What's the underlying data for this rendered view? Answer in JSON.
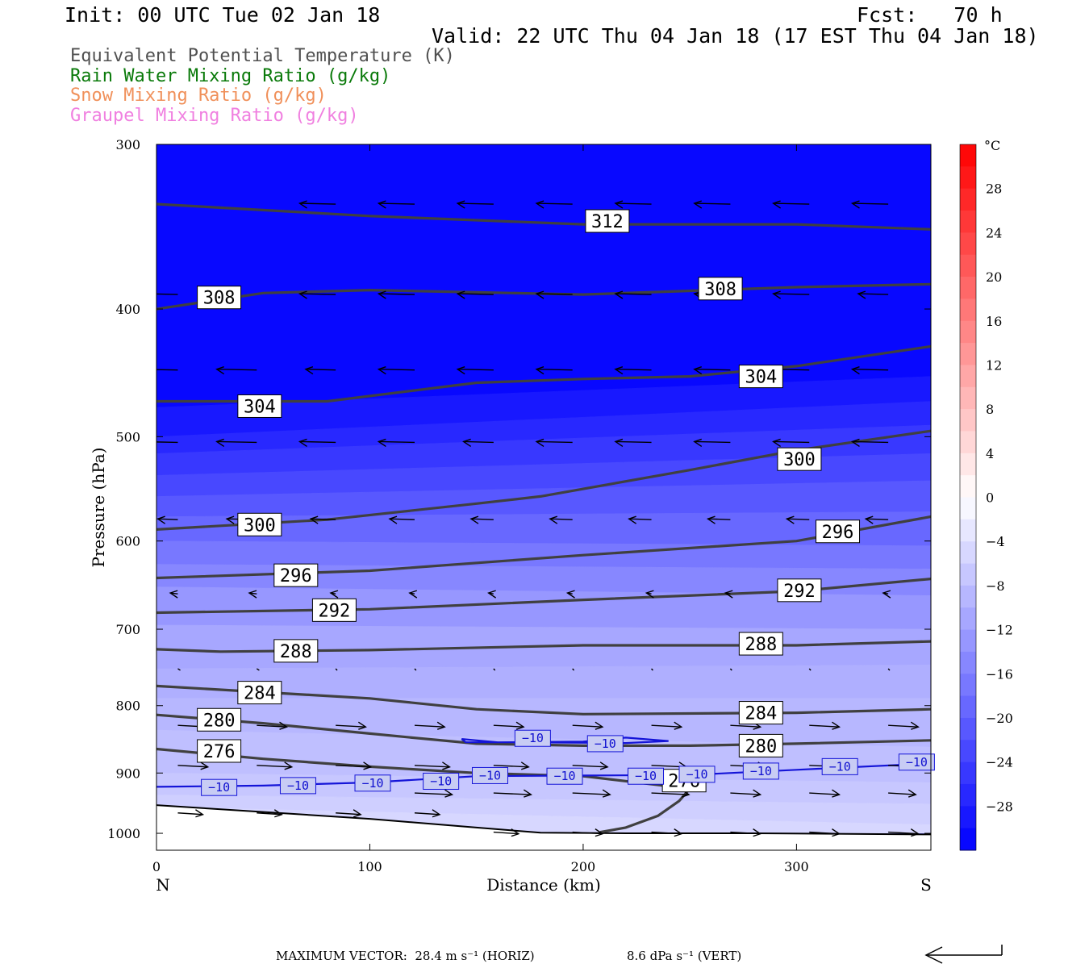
{
  "header": {
    "init": "Init: 00 UTC Tue 02 Jan 18",
    "fcst": "Fcst:   70 h",
    "valid": "Valid: 22 UTC Thu 04 Jan 18 (17 EST Thu 04 Jan 18)"
  },
  "legend": [
    {
      "text": "Equivalent Potential Temperature (K)",
      "color": "#505050"
    },
    {
      "text": "Rain Water Mixing Ratio (g/kg)",
      "color": "#0a7a0a"
    },
    {
      "text": "Snow Mixing Ratio (g/kg)",
      "color": "#f0905a"
    },
    {
      "text": "Graupel Mixing Ratio (g/kg)",
      "color": "#f080e0"
    }
  ],
  "footer": {
    "max_vector": "MAXIMUM VECTOR:  28.4 m s⁻¹ (HORIZ)",
    "vert": "8.6 dPa s⁻¹ (VERT)"
  },
  "chart_data": {
    "type": "cross-section",
    "xlabel": "Distance (km)",
    "ylabel": "Pressure (hPa)",
    "x_range": [
      0,
      363
    ],
    "y_range": [
      1030,
      300
    ],
    "y_log": true,
    "x_ticks": [
      0,
      100,
      200,
      300
    ],
    "y_ticks": [
      300,
      400,
      500,
      600,
      700,
      800,
      900,
      1000
    ],
    "left_end": "N",
    "right_end": "S",
    "colorbar": {
      "unit": "°C",
      "min": -32,
      "max": 32,
      "step": 2,
      "labels": [
        28,
        24,
        20,
        16,
        12,
        8,
        4,
        0,
        -4,
        -8,
        -12,
        -16,
        -20,
        -24,
        -28
      ]
    },
    "temperature_bands": [
      {
        "value": -31,
        "pts": [
          [
            0,
            300
          ],
          [
            363,
            300
          ],
          [
            363,
            450
          ],
          [
            0,
            475
          ]
        ]
      },
      {
        "value": -29,
        "pts": [
          [
            0,
            475
          ],
          [
            363,
            450
          ],
          [
            363,
            470
          ],
          [
            0,
            500
          ]
        ]
      },
      {
        "value": -27,
        "pts": [
          [
            0,
            500
          ],
          [
            363,
            470
          ],
          [
            363,
            490
          ],
          [
            0,
            515
          ]
        ]
      },
      {
        "value": -25,
        "pts": [
          [
            0,
            515
          ],
          [
            363,
            490
          ],
          [
            363,
            515
          ],
          [
            0,
            535
          ]
        ]
      },
      {
        "value": -23,
        "pts": [
          [
            0,
            535
          ],
          [
            363,
            515
          ],
          [
            363,
            540
          ],
          [
            0,
            555
          ]
        ]
      },
      {
        "value": -21,
        "pts": [
          [
            0,
            555
          ],
          [
            363,
            540
          ],
          [
            363,
            570
          ],
          [
            0,
            575
          ]
        ]
      },
      {
        "value": -19,
        "pts": [
          [
            0,
            575
          ],
          [
            363,
            570
          ],
          [
            363,
            605
          ],
          [
            0,
            600
          ]
        ]
      },
      {
        "value": -17,
        "pts": [
          [
            0,
            600
          ],
          [
            363,
            605
          ],
          [
            363,
            630
          ],
          [
            0,
            625
          ]
        ]
      },
      {
        "value": -15,
        "pts": [
          [
            0,
            625
          ],
          [
            363,
            630
          ],
          [
            363,
            660
          ],
          [
            0,
            650
          ]
        ]
      },
      {
        "value": -13,
        "pts": [
          [
            0,
            650
          ],
          [
            363,
            660
          ],
          [
            363,
            700
          ],
          [
            0,
            695
          ]
        ]
      },
      {
        "value": -11,
        "pts": [
          [
            0,
            695
          ],
          [
            363,
            700
          ],
          [
            363,
            745
          ],
          [
            0,
            750
          ]
        ]
      },
      {
        "value": -10,
        "pts": [
          [
            0,
            750
          ],
          [
            363,
            745
          ],
          [
            363,
            790
          ],
          [
            0,
            790
          ]
        ]
      },
      {
        "value": -9,
        "pts": [
          [
            0,
            790
          ],
          [
            363,
            790
          ],
          [
            363,
            860
          ],
          [
            0,
            835
          ]
        ]
      },
      {
        "value": -8,
        "pts": [
          [
            0,
            835
          ],
          [
            363,
            860
          ],
          [
            363,
            915
          ],
          [
            0,
            900
          ]
        ]
      },
      {
        "value": -7,
        "pts": [
          [
            0,
            900
          ],
          [
            363,
            915
          ],
          [
            363,
            950
          ],
          [
            0,
            935
          ]
        ]
      },
      {
        "value": -6,
        "pts": [
          [
            0,
            935
          ],
          [
            363,
            950
          ],
          [
            363,
            985
          ],
          [
            0,
            955
          ]
        ]
      },
      {
        "value": -5,
        "pts": [
          [
            0,
            955
          ],
          [
            180,
            1000
          ],
          [
            363,
            1000
          ],
          [
            363,
            985
          ]
        ]
      }
    ],
    "terrain": [
      [
        0,
        952
      ],
      [
        100,
        975
      ],
      [
        150,
        990
      ],
      [
        180,
        999
      ],
      [
        220,
        1000
      ],
      [
        280,
        1000
      ],
      [
        363,
        1002
      ]
    ],
    "theta_e_contours": [
      {
        "level": 312,
        "pts": [
          [
            0,
            333
          ],
          [
            100,
            340
          ],
          [
            200,
            345
          ],
          [
            300,
            345
          ],
          [
            363,
            348
          ]
        ]
      },
      {
        "level": 308,
        "pts": [
          [
            0,
            400
          ],
          [
            50,
            389
          ],
          [
            100,
            387
          ],
          [
            200,
            390
          ],
          [
            300,
            385
          ],
          [
            363,
            383
          ]
        ]
      },
      {
        "level": 304,
        "pts": [
          [
            0,
            470
          ],
          [
            80,
            470
          ],
          [
            150,
            455
          ],
          [
            200,
            452
          ],
          [
            250,
            450
          ],
          [
            300,
            442
          ],
          [
            363,
            427
          ]
        ]
      },
      {
        "level": 300,
        "pts": [
          [
            0,
            588
          ],
          [
            80,
            578
          ],
          [
            150,
            562
          ],
          [
            180,
            555
          ],
          [
            250,
            530
          ],
          [
            300,
            512
          ],
          [
            363,
            495
          ]
        ]
      },
      {
        "level": 296,
        "pts": [
          [
            0,
            640
          ],
          [
            100,
            632
          ],
          [
            200,
            615
          ],
          [
            300,
            600
          ],
          [
            363,
            575
          ]
        ]
      },
      {
        "level": 292,
        "pts": [
          [
            0,
            680
          ],
          [
            100,
            676
          ],
          [
            200,
            665
          ],
          [
            300,
            655
          ],
          [
            363,
            641
          ]
        ]
      },
      {
        "level": 288,
        "pts": [
          [
            0,
            725
          ],
          [
            30,
            728
          ],
          [
            100,
            726
          ],
          [
            200,
            720
          ],
          [
            300,
            720
          ],
          [
            363,
            715
          ]
        ]
      },
      {
        "level": 284,
        "pts": [
          [
            0,
            773
          ],
          [
            100,
            790
          ],
          [
            150,
            805
          ],
          [
            200,
            812
          ],
          [
            300,
            810
          ],
          [
            363,
            805
          ]
        ]
      },
      {
        "level": 280,
        "pts": [
          [
            0,
            813
          ],
          [
            50,
            825
          ],
          [
            100,
            840
          ],
          [
            150,
            855
          ],
          [
            200,
            858
          ],
          [
            250,
            858
          ],
          [
            300,
            855
          ],
          [
            363,
            850
          ]
        ]
      },
      {
        "level": 276,
        "pts": [
          [
            0,
            863
          ],
          [
            50,
            878
          ],
          [
            100,
            890
          ],
          [
            150,
            900
          ],
          [
            200,
            905
          ],
          [
            250,
            925
          ],
          [
            245,
            945
          ],
          [
            235,
            970
          ],
          [
            220,
            990
          ],
          [
            208,
            998
          ]
        ]
      }
    ],
    "theta_e_labels": [
      {
        "text": "312",
        "x": 200,
        "p": 343
      },
      {
        "text": "308",
        "x": 18,
        "p": 392
      },
      {
        "text": "308",
        "x": 253,
        "p": 386
      },
      {
        "text": "304",
        "x": 37,
        "p": 474
      },
      {
        "text": "304",
        "x": 272,
        "p": 450
      },
      {
        "text": "300",
        "x": 290,
        "p": 520
      },
      {
        "text": "300",
        "x": 37,
        "p": 583
      },
      {
        "text": "296",
        "x": 308,
        "p": 590
      },
      {
        "text": "296",
        "x": 54,
        "p": 637
      },
      {
        "text": "292",
        "x": 290,
        "p": 654
      },
      {
        "text": "292",
        "x": 72,
        "p": 677
      },
      {
        "text": "288",
        "x": 54,
        "p": 727
      },
      {
        "text": "288",
        "x": 272,
        "p": 718
      },
      {
        "text": "284",
        "x": 37,
        "p": 782
      },
      {
        "text": "284",
        "x": 272,
        "p": 810
      },
      {
        "text": "280",
        "x": 18,
        "p": 820
      },
      {
        "text": "280",
        "x": 272,
        "p": 858
      },
      {
        "text": "276",
        "x": 18,
        "p": 866
      },
      {
        "text": "276",
        "x": 236,
        "p": 912
      }
    ],
    "minus10_isotherm": {
      "line": [
        [
          0,
          922
        ],
        [
          50,
          920
        ],
        [
          100,
          915
        ],
        [
          150,
          905
        ],
        [
          200,
          904
        ],
        [
          250,
          903
        ],
        [
          300,
          895
        ],
        [
          363,
          885
        ]
      ],
      "loop": [
        [
          143,
          848
        ],
        [
          160,
          853
        ],
        [
          200,
          852
        ],
        [
          220,
          846
        ],
        [
          240,
          851
        ],
        [
          220,
          854
        ],
        [
          170,
          853
        ],
        [
          145,
          853
        ],
        [
          143,
          848
        ]
      ]
    },
    "minus10_labels": [
      {
        "text": "−10",
        "x": 18,
        "p": 923
      },
      {
        "text": "−10",
        "x": 55,
        "p": 920
      },
      {
        "text": "−10",
        "x": 90,
        "p": 916
      },
      {
        "text": "−10",
        "x": 122,
        "p": 913
      },
      {
        "text": "−10",
        "x": 145,
        "p": 904
      },
      {
        "text": "−10",
        "x": 180,
        "p": 905
      },
      {
        "text": "−10",
        "x": 218,
        "p": 905
      },
      {
        "text": "−10",
        "x": 242,
        "p": 902
      },
      {
        "text": "−10",
        "x": 272,
        "p": 897
      },
      {
        "text": "−10",
        "x": 309,
        "p": 890
      },
      {
        "text": "−10",
        "x": 345,
        "p": 883
      },
      {
        "text": "−10",
        "x": 165,
        "p": 847
      },
      {
        "text": "−10",
        "x": 199,
        "p": 855
      }
    ],
    "wind_vectors": {
      "x_cols": [
        10,
        47,
        84,
        121,
        158,
        195,
        232,
        269,
        306,
        343
      ],
      "rows": [
        {
          "p": 333,
          "u": [
            0,
            0,
            -0.72,
            -0.72,
            -0.72,
            -0.72,
            -0.72,
            -0.72,
            -0.72,
            -0.72
          ]
        },
        {
          "p": 390,
          "u": [
            -0.6,
            0,
            -0.72,
            -0.72,
            -0.72,
            -0.72,
            -0.72,
            -0.72,
            -0.72,
            -0.6
          ]
        },
        {
          "p": 445,
          "u": [
            -0.8,
            -0.8,
            -0.6,
            -0.72,
            -0.72,
            -0.72,
            -0.72,
            -0.72,
            -0.72,
            -0.72
          ]
        },
        {
          "p": 505,
          "u": [
            -0.8,
            -0.8,
            -0.72,
            -0.72,
            -0.6,
            -0.72,
            -0.72,
            -0.72,
            -0.72,
            -0.72
          ]
        },
        {
          "p": 578,
          "u": [
            -0.4,
            -0.6,
            -0.5,
            -0.5,
            -0.45,
            -0.45,
            -0.45,
            -0.45,
            -0.45,
            -0.45
          ]
        },
        {
          "p": 658,
          "u": [
            -0.15,
            -0.15,
            -0.1,
            -0.1,
            -0.1,
            -0.1,
            -0.1,
            -0.1,
            -0.1,
            -0.1
          ]
        },
        {
          "p": 750,
          "u": [
            0.05,
            0.05,
            0.03,
            0.03,
            0.03,
            0.03,
            0.03,
            0.03,
            0.03,
            0.03
          ]
        },
        {
          "p": 828,
          "u": [
            0.6,
            0.6,
            0.6,
            0.6,
            0.6,
            0.6,
            0.6,
            0.6,
            0.6,
            0.6
          ]
        },
        {
          "p": 888,
          "u": [
            0.6,
            0.7,
            0.7,
            0.7,
            0.7,
            0.7,
            0.7,
            0.7,
            0.7,
            0.7
          ]
        },
        {
          "p": 932,
          "u": [
            0,
            0,
            0,
            0.75,
            0.75,
            0.75,
            0.75,
            0.6,
            0.6,
            0.55
          ]
        },
        {
          "p": 965,
          "u": [
            0.5,
            0.5,
            0.5,
            0.5,
            0,
            0,
            0,
            0,
            0,
            0
          ]
        },
        {
          "p": 998,
          "u": [
            0,
            0,
            0,
            0,
            0.5,
            0.6,
            0.6,
            0.6,
            0.6,
            0.6
          ]
        }
      ]
    }
  }
}
